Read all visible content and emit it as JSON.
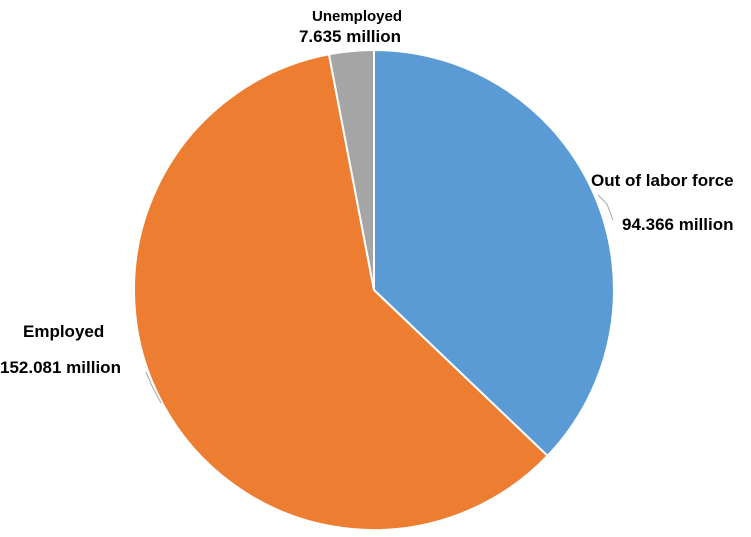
{
  "chart_data": {
    "type": "pie",
    "title": "",
    "unit": "million",
    "slices": [
      {
        "name": "Out of labor force",
        "value": 94.366,
        "value_label": "94.366 million",
        "color": "#5B9BD5"
      },
      {
        "name": "Employed",
        "value": 152.081,
        "value_label": "152.081 million",
        "color": "#ED7D31"
      },
      {
        "name": "Unemployed",
        "value": 7.635,
        "value_label": "7.635 million",
        "color": "#A5A5A5"
      }
    ],
    "start_angle": "12 o'clock",
    "direction": "clockwise",
    "legend": "none",
    "data_labels": "outside with leader lines"
  }
}
